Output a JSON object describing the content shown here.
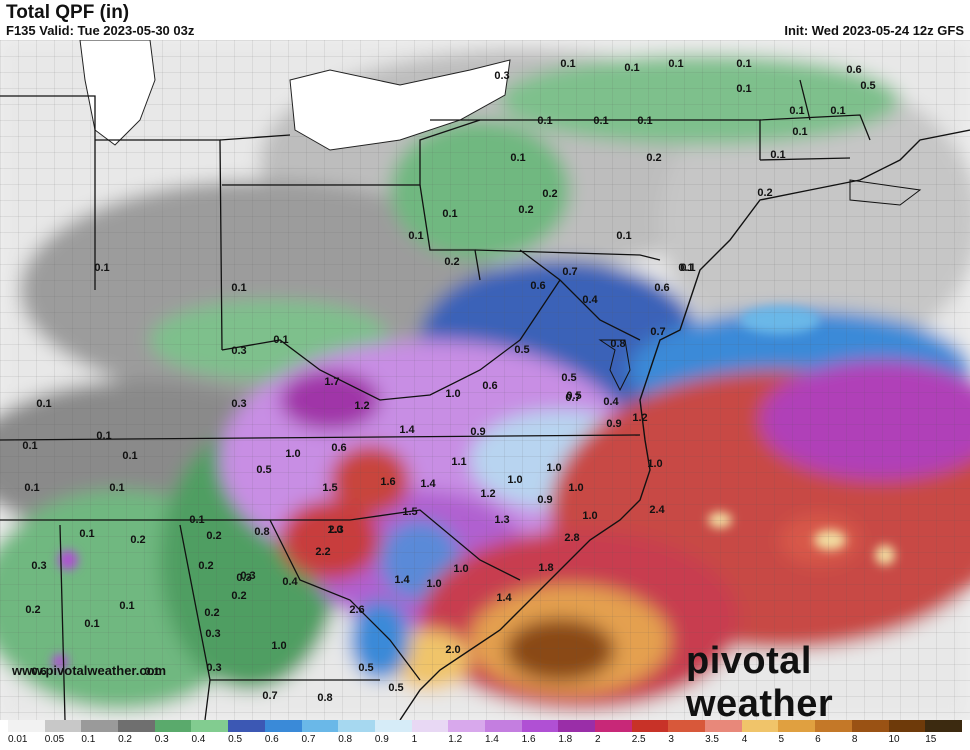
{
  "header": {
    "title": "Total QPF (in)",
    "valid": "F135 Valid: Tue 2023-05-30 03z",
    "init": "Init: Wed 2023-05-24 12z GFS"
  },
  "footer": {
    "url": "www.pivotalweather.com",
    "brand": "pivotal weather"
  },
  "map_labels": [
    "0.1",
    "0.1",
    "0.1",
    "0.1",
    "0.6",
    "0.3",
    "0.1",
    "0.5",
    "0.1",
    "0.1",
    "0.1",
    "0.1",
    "0.1",
    "0.1",
    "0.1",
    "0.2",
    "0.1",
    "0.2",
    "0.1",
    "0.2",
    "0.2",
    "0.1",
    "0.2",
    "0.1",
    "0.1",
    "0.7",
    "0.6",
    "0.6",
    "0.4",
    "0.1",
    "0.1",
    "0.3",
    "0.1",
    "0.1",
    "0.7",
    "0.5",
    "0.3",
    "0.5",
    "0.8",
    "1.7",
    "1.2",
    "1.0",
    "0.6",
    "0.5",
    "0.7",
    "0.1",
    "0.4",
    "1.2",
    "0.1",
    "0.1",
    "0.1",
    "1.0",
    "0.6",
    "1.4",
    "0.9",
    "0.9",
    "1.1",
    "0.1",
    "0.1",
    "0.5",
    "1.0",
    "1.0",
    "1.6",
    "1.4",
    "1.0",
    "1.0",
    "0.1",
    "1.5",
    "1.2",
    "0.9",
    "1.0",
    "1.5",
    "1.3",
    "2.4",
    "0.1",
    "0.8",
    "1.0",
    "0.2",
    "0.2",
    "0.3",
    "2.3",
    "2.2",
    "2.8",
    "0.3",
    "0.2",
    "0.3",
    "1.8",
    "1.0",
    "0.4",
    "1.4",
    "1.0",
    "0.2",
    "0.1",
    "0.1",
    "0.2",
    "1.4",
    "0.2",
    "2.6",
    "0.3",
    "1.0",
    "0.6",
    "2.0",
    "0.1",
    "0.3",
    "0.5",
    "0.7",
    "0.8",
    "0.5"
  ],
  "color_scale": {
    "labels": [
      "0.01",
      "0.05",
      "0.1",
      "0.2",
      "0.3",
      "0.4",
      "0.5",
      "0.6",
      "0.7",
      "0.8",
      "0.9",
      "1",
      "1.2",
      "1.4",
      "1.6",
      "1.8",
      "2",
      "2.5",
      "3",
      "3.5",
      "4",
      "5",
      "6",
      "8",
      "10",
      "15"
    ],
    "colors": [
      "#f2f2f2",
      "#c8c8c8",
      "#9a9a9a",
      "#6f6f6f",
      "#5aaa6c",
      "#82cc90",
      "#3c58b4",
      "#3a8ad8",
      "#6ab8e8",
      "#a6d8f0",
      "#d6ecf8",
      "#e8d8f4",
      "#d8a8ec",
      "#c47ee0",
      "#b050d4",
      "#9a2ea8",
      "#c82878",
      "#c83228",
      "#d8583a",
      "#e8887a",
      "#f0c46a",
      "#e0a040",
      "#c47828",
      "#9a5214",
      "#6e3a0a",
      "#3c2a10"
    ]
  }
}
